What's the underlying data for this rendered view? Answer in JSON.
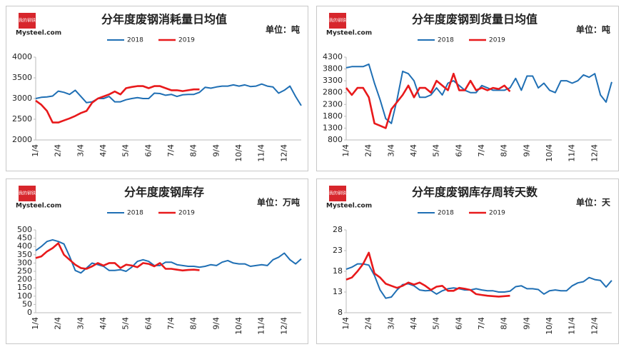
{
  "chart_data": [
    {
      "type": "line",
      "title": "分年度废钢消耗量日均值",
      "unit": "单位：吨",
      "logo": {
        "cn": "我的钢铁",
        "en": "Mysteel.com"
      },
      "categories": [
        "1/4",
        null,
        null,
        null,
        "2/4",
        null,
        null,
        null,
        "3/4",
        null,
        null,
        null,
        "4/4",
        null,
        null,
        null,
        "5/4",
        null,
        null,
        null,
        "6/4",
        null,
        null,
        null,
        "7/4",
        null,
        null,
        null,
        "8/4",
        null,
        null,
        null,
        "9/4",
        null,
        null,
        null,
        "10/4",
        null,
        null,
        null,
        "11/4",
        null,
        null,
        null,
        "12/4",
        null,
        null,
        null
      ],
      "ylim": [
        2000,
        4000
      ],
      "yticks": [
        2000,
        2500,
        3000,
        3500,
        4000
      ],
      "series": [
        {
          "name": "2018",
          "color": "#1f6fb4",
          "values": [
            3000,
            3030,
            3040,
            3060,
            3180,
            3150,
            3100,
            3200,
            3050,
            2900,
            2920,
            3000,
            3000,
            3050,
            2920,
            2920,
            2970,
            3000,
            3020,
            3000,
            3000,
            3130,
            3120,
            3080,
            3100,
            3050,
            3090,
            3100,
            3100,
            3150,
            3270,
            3250,
            3280,
            3300,
            3300,
            3330,
            3300,
            3330,
            3290,
            3300,
            3350,
            3300,
            3280,
            3130,
            3200,
            3300,
            3050,
            2830
          ]
        },
        {
          "name": "2019",
          "color": "#e8191b",
          "values": [
            2950,
            2850,
            2700,
            2420,
            2420,
            2470,
            2520,
            2580,
            2650,
            2700,
            2900,
            3000,
            3050,
            3100,
            3170,
            3100,
            3250,
            3280,
            3300,
            3300,
            3250,
            3300,
            3300,
            3250,
            3200,
            3200,
            3180,
            3200,
            3220,
            3220,
            null,
            null,
            null,
            null,
            null,
            null,
            null,
            null,
            null,
            null,
            null,
            null,
            null,
            null,
            null,
            null,
            null,
            null
          ]
        }
      ]
    },
    {
      "type": "line",
      "title": "分年度废钢到货量日均值",
      "unit": "单位：吨",
      "logo": {
        "cn": "我的钢铁",
        "en": "Mysteel.com"
      },
      "categories": [
        "1/4",
        null,
        null,
        null,
        "2/4",
        null,
        null,
        null,
        "3/4",
        null,
        null,
        null,
        "4/4",
        null,
        null,
        null,
        "5/4",
        null,
        null,
        null,
        "6/4",
        null,
        null,
        null,
        "7/4",
        null,
        null,
        null,
        "8/4",
        null,
        null,
        null,
        "9/4",
        null,
        null,
        null,
        "10/4",
        null,
        null,
        null,
        "11/4",
        null,
        null,
        null,
        "12/4",
        null,
        null,
        null
      ],
      "ylim": [
        800,
        4300
      ],
      "yticks": [
        800,
        1300,
        1800,
        2300,
        2800,
        3300,
        3800,
        4300
      ],
      "series": [
        {
          "name": "2018",
          "color": "#1f6fb4",
          "values": [
            3850,
            3900,
            3900,
            3900,
            4000,
            3200,
            2500,
            1700,
            1500,
            2500,
            3700,
            3600,
            3300,
            2600,
            2600,
            2700,
            3000,
            2700,
            3200,
            3300,
            3100,
            2900,
            2800,
            2800,
            3100,
            3000,
            2900,
            2900,
            2900,
            3000,
            3400,
            2900,
            3500,
            3500,
            3000,
            3200,
            2900,
            2800,
            3300,
            3300,
            3200,
            3300,
            3550,
            3450,
            3600,
            2700,
            2400,
            3250
          ]
        },
        {
          "name": "2019",
          "color": "#e8191b",
          "values": [
            3000,
            2700,
            3000,
            3000,
            2600,
            1500,
            1400,
            1300,
            2100,
            2400,
            2700,
            3100,
            2600,
            3000,
            3000,
            2800,
            3300,
            3100,
            2900,
            3600,
            2900,
            2900,
            3300,
            2900,
            3000,
            2900,
            3000,
            2950,
            3100,
            2850,
            null,
            null,
            null,
            null,
            null,
            null,
            null,
            null,
            null,
            null,
            null,
            null,
            null,
            null,
            null,
            null,
            null,
            null
          ]
        }
      ]
    },
    {
      "type": "line",
      "title": "分年度废钢库存",
      "unit": "单位：万吨",
      "logo": {
        "cn": "我的钢铁",
        "en": "Mysteel.com"
      },
      "categories": [
        "1/4",
        null,
        null,
        null,
        "2/4",
        null,
        null,
        null,
        "3/4",
        null,
        null,
        null,
        "4/4",
        null,
        null,
        null,
        "5/4",
        null,
        null,
        null,
        "6/4",
        null,
        null,
        null,
        "7/4",
        null,
        null,
        null,
        "8/4",
        null,
        null,
        null,
        "9/4",
        null,
        null,
        null,
        "10/4",
        null,
        null,
        null,
        "11/4",
        null,
        null,
        null,
        "12/4",
        null,
        null,
        null
      ],
      "ylim": [
        0,
        500
      ],
      "yticks": [
        0,
        50,
        100,
        150,
        200,
        250,
        300,
        350,
        400,
        450,
        500
      ],
      "series": [
        {
          "name": "2018",
          "color": "#1f6fb4",
          "values": [
            375,
            400,
            430,
            440,
            430,
            415,
            340,
            255,
            240,
            270,
            300,
            290,
            280,
            255,
            255,
            260,
            250,
            275,
            310,
            320,
            310,
            285,
            285,
            305,
            305,
            290,
            285,
            280,
            280,
            275,
            280,
            290,
            285,
            305,
            315,
            300,
            295,
            295,
            280,
            285,
            290,
            285,
            320,
            335,
            360,
            320,
            295,
            325
          ]
        },
        {
          "name": "2019",
          "color": "#e8191b",
          "values": [
            330,
            340,
            370,
            390,
            420,
            350,
            320,
            290,
            270,
            265,
            280,
            300,
            285,
            300,
            300,
            270,
            290,
            285,
            275,
            300,
            295,
            280,
            300,
            265,
            265,
            260,
            255,
            258,
            260,
            257,
            null,
            null,
            null,
            null,
            null,
            null,
            null,
            null,
            null,
            null,
            null,
            null,
            null,
            null,
            null,
            null,
            null,
            null
          ]
        }
      ]
    },
    {
      "type": "line",
      "title": "分年度废钢库存周转天数",
      "unit": "单位：天",
      "logo": {
        "cn": "我的钢铁",
        "en": "Mysteel.com"
      },
      "categories": [
        "1/4",
        null,
        null,
        null,
        "2/4",
        null,
        null,
        null,
        "3/4",
        null,
        null,
        null,
        "4/4",
        null,
        null,
        null,
        "5/4",
        null,
        null,
        null,
        "6/4",
        null,
        null,
        null,
        "7/4",
        null,
        null,
        null,
        "8/4",
        null,
        null,
        null,
        "9/4",
        null,
        null,
        null,
        "10/4",
        null,
        null,
        null,
        "11/4",
        null,
        null,
        null,
        "12/4",
        null,
        null,
        null
      ],
      "ylim": [
        8,
        28
      ],
      "yticks": [
        8,
        13,
        18,
        23,
        28
      ],
      "series": [
        {
          "name": "2018",
          "color": "#1f6fb4",
          "values": [
            18.5,
            19,
            19.8,
            19.8,
            19.5,
            17,
            13.5,
            11.5,
            11.8,
            13.5,
            14.8,
            15,
            14.5,
            13.5,
            13.3,
            13.4,
            12.5,
            13.3,
            13.8,
            14,
            13.8,
            13.5,
            13.5,
            13.8,
            13.5,
            13.3,
            13.3,
            13,
            13,
            13.2,
            14.3,
            14.5,
            13.8,
            13.8,
            13.6,
            12.5,
            13.3,
            13.5,
            13.3,
            13.3,
            14.5,
            15.2,
            15.5,
            16.5,
            16,
            15.8,
            14.2,
            15.8
          ]
        },
        {
          "name": "2019",
          "color": "#e8191b",
          "values": [
            16,
            16.5,
            18,
            19.8,
            22.5,
            17.5,
            16.5,
            15,
            14.5,
            14,
            14.5,
            15.3,
            14.8,
            15.3,
            14.5,
            13.5,
            14.3,
            14.5,
            13.3,
            13.3,
            14,
            13.8,
            13.5,
            12.5,
            12.3,
            12.1,
            12,
            11.9,
            12,
            12.1,
            null,
            null,
            null,
            null,
            null,
            null,
            null,
            null,
            null,
            null,
            null,
            null,
            null,
            null,
            null,
            null,
            null,
            null
          ]
        }
      ]
    }
  ]
}
